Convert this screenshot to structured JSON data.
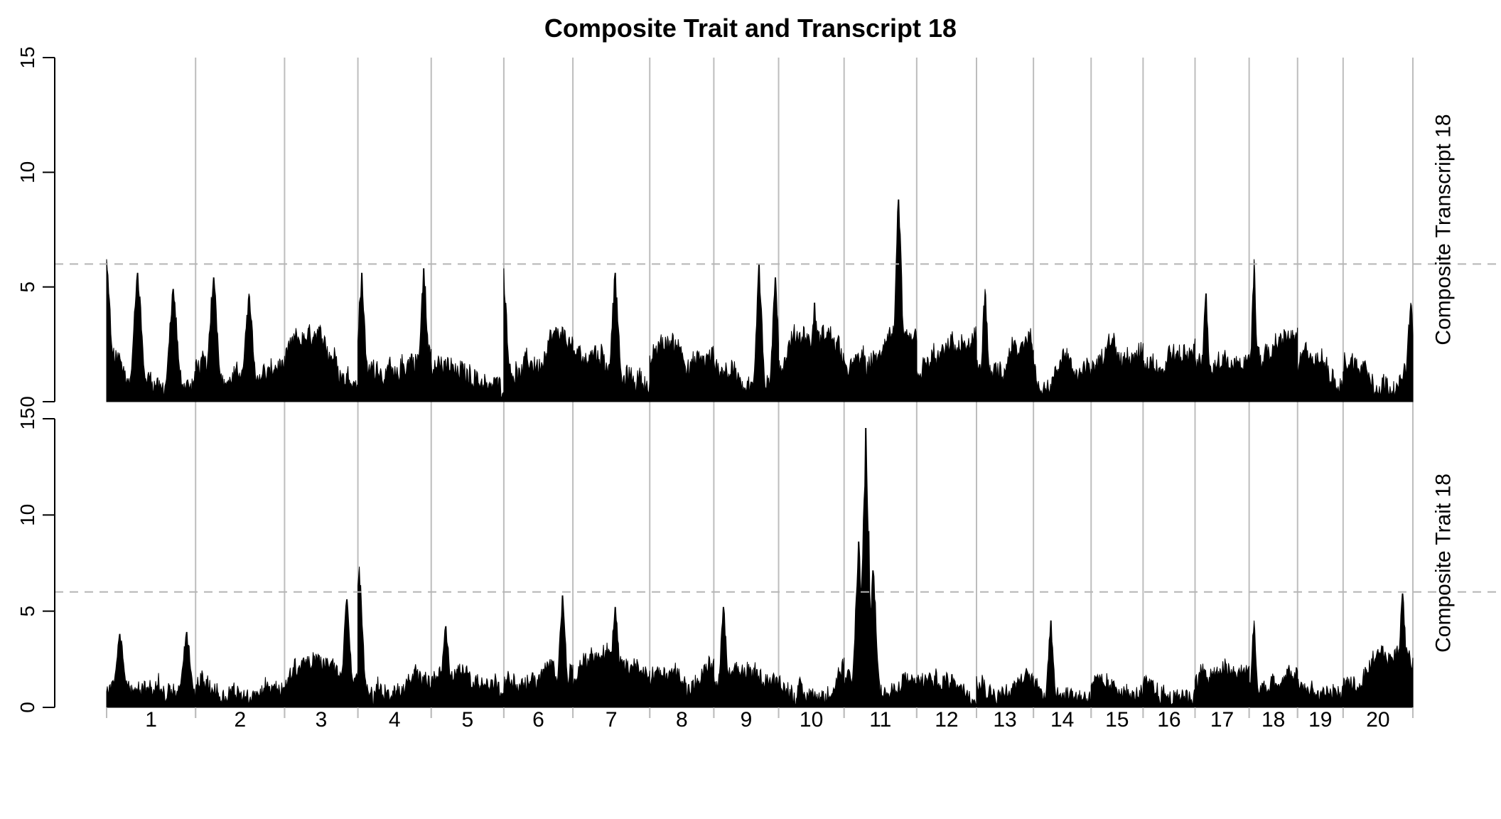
{
  "chart_data": {
    "type": "area",
    "title": "Composite Trait and Transcript 18",
    "chromosomes": [
      "1",
      "2",
      "3",
      "4",
      "5",
      "6",
      "7",
      "8",
      "9",
      "10",
      "11",
      "12",
      "13",
      "14",
      "15",
      "16",
      "17",
      "18",
      "19",
      "20"
    ],
    "chromosome_relative_widths": [
      125,
      125,
      103,
      103,
      102,
      97,
      108,
      90,
      91,
      92,
      102,
      84,
      80,
      81,
      73,
      73,
      76,
      68,
      64,
      98
    ],
    "threshold": 6,
    "grid": "vertical chromosome boundaries",
    "panels": [
      {
        "label": "Composite Transcript 18",
        "ylim": [
          0,
          15
        ],
        "yticks": [
          "0",
          "5",
          "10",
          "15"
        ],
        "peaks": [
          {
            "chr": "1",
            "pos": 0.0,
            "value": 6.2
          },
          {
            "chr": "1",
            "pos": 0.35,
            "value": 5.6
          },
          {
            "chr": "1",
            "pos": 0.75,
            "value": 4.9
          },
          {
            "chr": "2",
            "pos": 0.2,
            "value": 5.4
          },
          {
            "chr": "2",
            "pos": 0.6,
            "value": 4.7
          },
          {
            "chr": "4",
            "pos": 0.05,
            "value": 5.6
          },
          {
            "chr": "4",
            "pos": 0.9,
            "value": 5.8
          },
          {
            "chr": "6",
            "pos": 0.0,
            "value": 5.8
          },
          {
            "chr": "7",
            "pos": 0.55,
            "value": 5.6
          },
          {
            "chr": "9",
            "pos": 0.7,
            "value": 6.0
          },
          {
            "chr": "9",
            "pos": 0.95,
            "value": 5.4
          },
          {
            "chr": "10",
            "pos": 0.55,
            "value": 4.3
          },
          {
            "chr": "11",
            "pos": 0.75,
            "value": 8.8
          },
          {
            "chr": "13",
            "pos": 0.15,
            "value": 4.9
          },
          {
            "chr": "17",
            "pos": 0.2,
            "value": 4.7
          },
          {
            "chr": "18",
            "pos": 0.1,
            "value": 6.2
          },
          {
            "chr": "20",
            "pos": 0.97,
            "value": 4.3
          }
        ]
      },
      {
        "label": "Composite Trait 18",
        "ylim": [
          0,
          15
        ],
        "yticks": [
          "0",
          "5",
          "10",
          "15"
        ],
        "peaks": [
          {
            "chr": "1",
            "pos": 0.15,
            "value": 3.8
          },
          {
            "chr": "1",
            "pos": 0.9,
            "value": 3.9
          },
          {
            "chr": "3",
            "pos": 0.85,
            "value": 5.6
          },
          {
            "chr": "4",
            "pos": 0.02,
            "value": 7.3
          },
          {
            "chr": "5",
            "pos": 0.2,
            "value": 4.2
          },
          {
            "chr": "6",
            "pos": 0.85,
            "value": 5.8
          },
          {
            "chr": "7",
            "pos": 0.55,
            "value": 5.2
          },
          {
            "chr": "9",
            "pos": 0.15,
            "value": 5.2
          },
          {
            "chr": "11",
            "pos": 0.2,
            "value": 8.6
          },
          {
            "chr": "11",
            "pos": 0.3,
            "value": 14.5
          },
          {
            "chr": "11",
            "pos": 0.4,
            "value": 7.1
          },
          {
            "chr": "14",
            "pos": 0.3,
            "value": 4.5
          },
          {
            "chr": "18",
            "pos": 0.1,
            "value": 4.5
          },
          {
            "chr": "20",
            "pos": 0.85,
            "value": 5.9
          }
        ]
      }
    ]
  }
}
